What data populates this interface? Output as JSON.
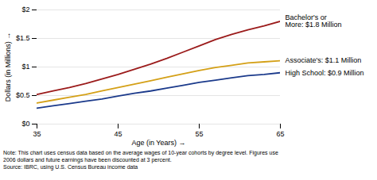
{
  "chart_data": {
    "type": "line",
    "xlabel": "Age (in Years)",
    "ylabel": "Dollars (in Millions)",
    "x": [
      35,
      37,
      39,
      41,
      43,
      45,
      47,
      49,
      51,
      53,
      55,
      57,
      59,
      61,
      63,
      65
    ],
    "series": [
      {
        "name": "Bachelor's or\nMore: $1.8 Million",
        "color": "#9B1B1B",
        "values": [
          0.52,
          0.58,
          0.64,
          0.71,
          0.79,
          0.87,
          0.96,
          1.05,
          1.15,
          1.26,
          1.37,
          1.48,
          1.57,
          1.65,
          1.72,
          1.8
        ]
      },
      {
        "name": "Associate's: $1.1 Million",
        "color": "#D4A017",
        "values": [
          0.37,
          0.42,
          0.47,
          0.52,
          0.58,
          0.64,
          0.7,
          0.76,
          0.82,
          0.88,
          0.94,
          0.99,
          1.03,
          1.07,
          1.09,
          1.11
        ]
      },
      {
        "name": "High School: $0.9 Million",
        "color": "#1B3A8B",
        "values": [
          0.28,
          0.32,
          0.36,
          0.4,
          0.44,
          0.49,
          0.54,
          0.58,
          0.63,
          0.68,
          0.73,
          0.77,
          0.81,
          0.85,
          0.87,
          0.9
        ]
      }
    ],
    "xlim": [
      35,
      65
    ],
    "xticks": [
      35,
      45,
      55,
      65
    ],
    "ylim": [
      0,
      2.0
    ],
    "yticks": [
      {
        "value": 0,
        "label": "$0"
      },
      {
        "value": 0.5,
        "label": "$0.5"
      },
      {
        "value": 1.0,
        "label": "$1"
      },
      {
        "value": 1.5,
        "label": "$1.5"
      },
      {
        "value": 2.0,
        "label": "$2"
      }
    ],
    "grid": true,
    "annotations": [
      "Note: This chart uses census data based on the average wages of 10-year cohorts by degree level. Figures use\n2006 dollars and future earnings have been discounted at 3 percent.\nSource: IBRC, using U.S. Census Bureau income data"
    ]
  }
}
